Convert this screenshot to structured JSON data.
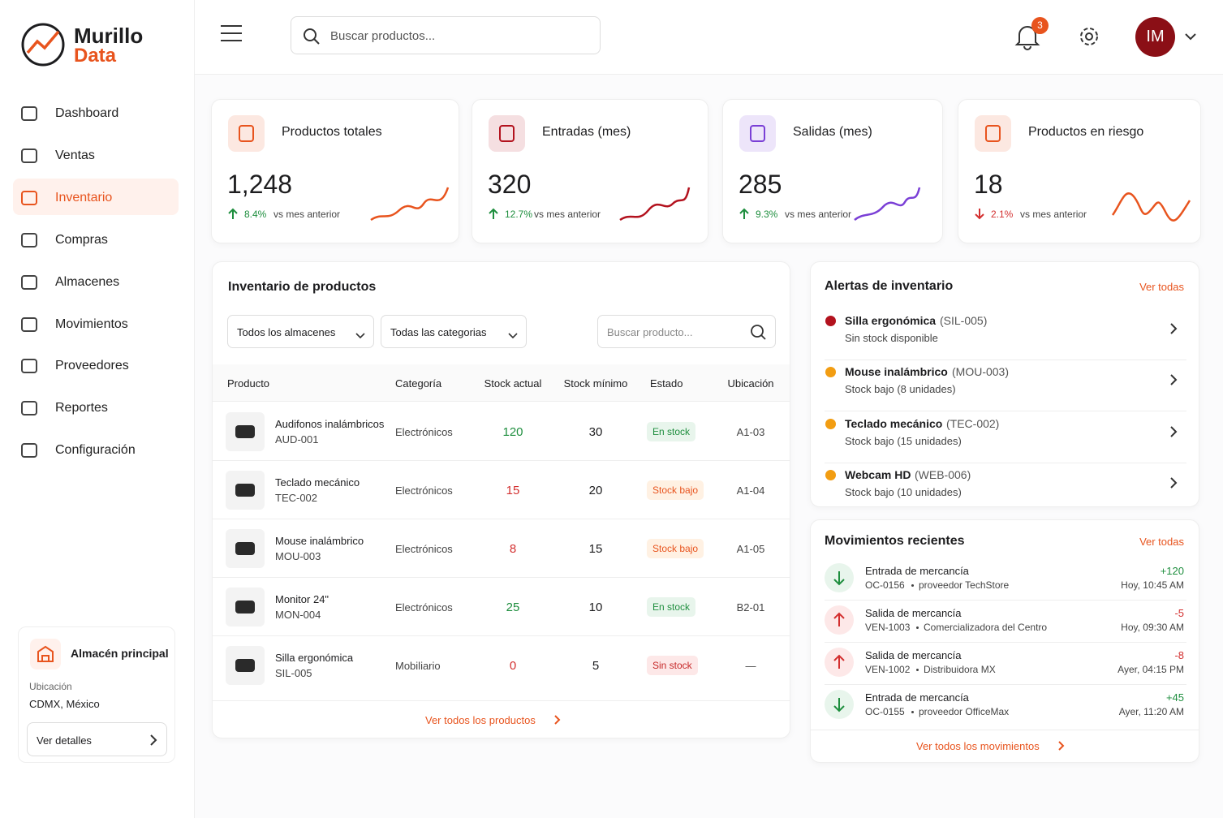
{
  "brand": {
    "line1": "Murillo",
    "line2": "Data"
  },
  "nav": [
    "Dashboard",
    "Ventas",
    "Inventario",
    "Compras",
    "Almacenes",
    "Movimientos",
    "Proveedores",
    "Reportes",
    "Configuración"
  ],
  "warehouse": {
    "title": "Almacén principal",
    "location_label": "Ubicación",
    "location": "CDMX, México",
    "button": "Ver detalles"
  },
  "header": {
    "search_placeholder": "Buscar productos...",
    "notifications": 3,
    "initials": "IM"
  },
  "kpis": [
    {
      "title": "Productos totales",
      "value": "1,248",
      "change": "8.4%",
      "compare": "vs mes anterior",
      "trend": "up",
      "color": "#e8541e"
    },
    {
      "title": "Entradas (mes)",
      "value": 320,
      "change": "12.7%",
      "compare": "vs mes anterior",
      "trend": "up",
      "color": "#b3121e"
    },
    {
      "title": "Salidas (mes)",
      "value": 285,
      "change": "9.3%",
      "compare": "vs mes anterior",
      "trend": "up",
      "color": "#7a3fd6"
    },
    {
      "title": "Productos en riesgo",
      "value": 18,
      "change": "2.1%",
      "compare": "vs mes anterior",
      "trend": "down",
      "color": "#e8541e"
    }
  ],
  "inventory": {
    "title": "Inventario de productos",
    "filters": [
      "Todos los almacenes",
      "Todas las categorias"
    ],
    "search_placeholder": "Buscar producto...",
    "columns": [
      "Producto",
      "Categoría",
      "Stock actual",
      "Stock mínimo",
      "Estado",
      "Ubicación"
    ],
    "rows": [
      {
        "name": "Audifonos inalámbricos",
        "sku": "AUD-001",
        "category": "Electrónicos",
        "stock": 120,
        "min": 30,
        "status": "En stock",
        "location": "A1-03"
      },
      {
        "name": "Teclado mecánico",
        "sku": "TEC-002",
        "category": "Electrónicos",
        "stock": 15,
        "min": 20,
        "status": "Stock bajo",
        "location": "A1-04"
      },
      {
        "name": "Mouse inalámbrico",
        "sku": "MOU-003",
        "category": "Electrónicos",
        "stock": 8,
        "min": 15,
        "status": "Stock bajo",
        "location": "A1-05"
      },
      {
        "name": "Monitor 24\"",
        "sku": "MON-004",
        "category": "Electrónicos",
        "stock": 25,
        "min": 10,
        "status": "En stock",
        "location": "B2-01"
      },
      {
        "name": "Silla ergonómica",
        "sku": "SIL-005",
        "category": "Mobiliario",
        "stock": 0,
        "min": 5,
        "status": "Sin stock",
        "location": "—"
      }
    ],
    "footer": "Ver todos los productos"
  },
  "alerts": {
    "title": "Alertas de inventario",
    "link": "Ver todas",
    "items": [
      {
        "name": "Silla ergonómica",
        "code": "(SIL-005)",
        "detail": "Sin stock disponible",
        "color": "#b3121e"
      },
      {
        "name": "Mouse inalámbrico",
        "code": "(MOU-003)",
        "detail": "Stock bajo (8 unidades)",
        "color": "#f29d12"
      },
      {
        "name": "Teclado mecánico",
        "code": "(TEC-002)",
        "detail": "Stock bajo (15 unidades)",
        "color": "#f29d12"
      },
      {
        "name": "Webcam HD",
        "code": "(WEB-006)",
        "detail": "Stock bajo (10 unidades)",
        "color": "#f29d12"
      }
    ]
  },
  "movements": {
    "title": "Movimientos recientes",
    "link": "Ver todas",
    "items": [
      {
        "title": "Entrada de mercancía",
        "ref": "OC-0156",
        "party": "proveedor TechStore",
        "qty": "+120",
        "time": "Hoy, 10:45 AM"
      },
      {
        "title": "Salida de mercancía",
        "ref": "VEN-1003",
        "party": "Comercializadora del Centro",
        "qty": "-5",
        "time": "Hoy, 09:30 AM"
      },
      {
        "title": "Salida de mercancía",
        "ref": "VEN-1002",
        "party": "Distribuidora MX",
        "qty": "-8",
        "time": "Ayer, 04:15 PM"
      },
      {
        "title": "Entrada de mercancía",
        "ref": "OC-0155",
        "party": "proveedor OfficeMax",
        "qty": "+45",
        "time": "Ayer, 11:20 AM"
      }
    ],
    "footer": "Ver todos los movimientos"
  }
}
